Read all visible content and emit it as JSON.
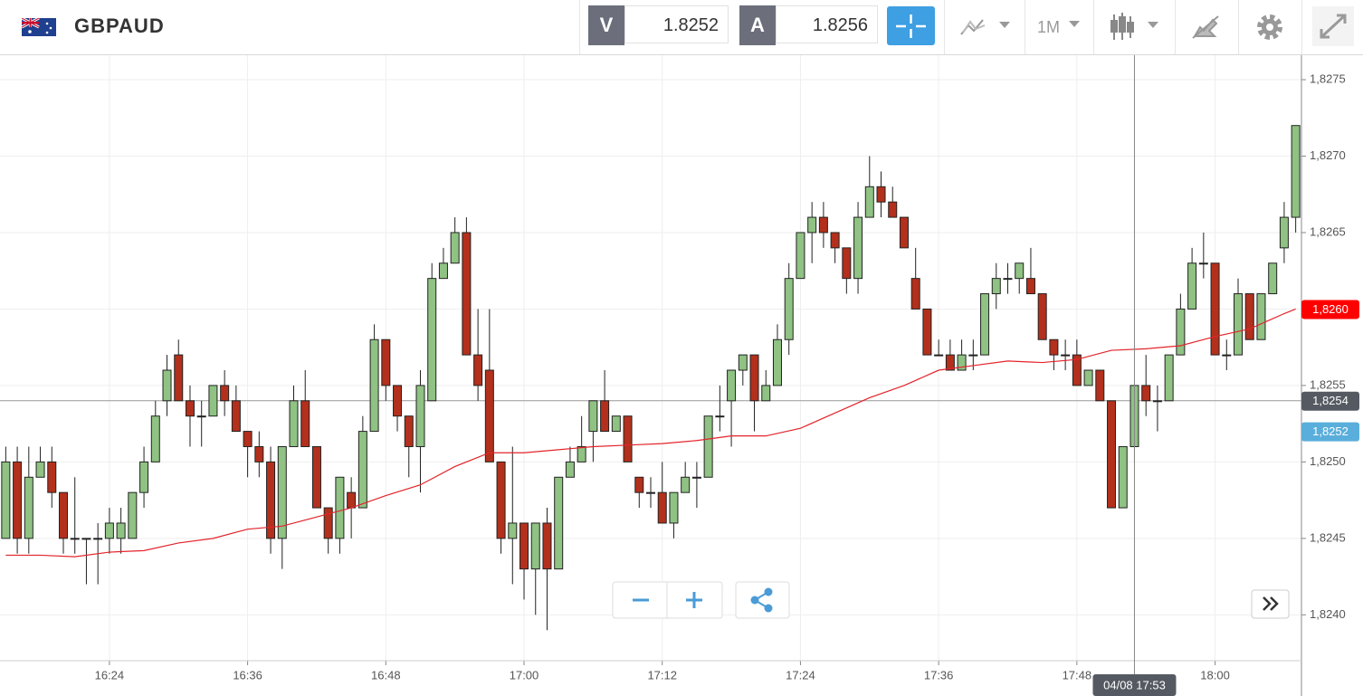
{
  "toolbar": {
    "symbol": "GBPAUD",
    "bid_label": "V",
    "bid": 1.8252,
    "ask_label": "A",
    "ask": 1.8256,
    "timeframe": "1M"
  },
  "chart_data": {
    "type": "candlestick",
    "x": [
      "16:15",
      "16:16",
      "16:17",
      "16:18",
      "16:19",
      "16:20",
      "16:21",
      "16:22",
      "16:23",
      "16:24",
      "16:25",
      "16:26",
      "16:27",
      "16:28",
      "16:29",
      "16:30",
      "16:31",
      "16:32",
      "16:33",
      "16:34",
      "16:35",
      "16:36",
      "16:37",
      "16:38",
      "16:39",
      "16:40",
      "16:41",
      "16:42",
      "16:43",
      "16:44",
      "16:45",
      "16:46",
      "16:47",
      "16:48",
      "16:49",
      "16:50",
      "16:51",
      "16:52",
      "16:53",
      "16:54",
      "16:55",
      "16:56",
      "16:57",
      "16:58",
      "16:59",
      "17:00",
      "17:01",
      "17:02",
      "17:03",
      "17:04",
      "17:05",
      "17:06",
      "17:07",
      "17:08",
      "17:09",
      "17:10",
      "17:11",
      "17:12",
      "17:13",
      "17:14",
      "17:15",
      "17:16",
      "17:17",
      "17:18",
      "17:19",
      "17:20",
      "17:21",
      "17:22",
      "17:23",
      "17:24",
      "17:25",
      "17:26",
      "17:27",
      "17:28",
      "17:29",
      "17:30",
      "17:31",
      "17:32",
      "17:33",
      "17:34",
      "17:35",
      "17:36",
      "17:37",
      "17:38",
      "17:39",
      "17:40",
      "17:41",
      "17:42",
      "17:43",
      "17:44",
      "17:45",
      "17:46",
      "17:47",
      "17:48",
      "17:49",
      "17:50",
      "17:51",
      "17:52",
      "17:53",
      "17:54",
      "17:55",
      "17:56",
      "17:57",
      "17:58",
      "17:59",
      "18:00",
      "18:01",
      "18:02",
      "18:03",
      "18:04",
      "18:05",
      "18:06",
      "18:07"
    ],
    "open": [
      1.8245,
      1.825,
      1.8245,
      1.8249,
      1.825,
      1.8248,
      1.8245,
      1.8245,
      1.8245,
      1.8245,
      1.8245,
      1.8245,
      1.8248,
      1.825,
      1.8254,
      1.8257,
      1.8254,
      1.8253,
      1.8253,
      1.8255,
      1.8254,
      1.8252,
      1.8251,
      1.825,
      1.8245,
      1.8251,
      1.8254,
      1.8251,
      1.8247,
      1.8245,
      1.8248,
      1.8247,
      1.8252,
      1.8258,
      1.8255,
      1.8253,
      1.8251,
      1.8254,
      1.8262,
      1.8263,
      1.8265,
      1.8257,
      1.8256,
      1.825,
      1.8245,
      1.8246,
      1.8243,
      1.8246,
      1.8243,
      1.8249,
      1.825,
      1.8252,
      1.8254,
      1.8252,
      1.8253,
      1.8249,
      1.8248,
      1.8248,
      1.8246,
      1.8248,
      1.8249,
      1.8249,
      1.8253,
      1.8254,
      1.8256,
      1.8257,
      1.8254,
      1.8255,
      1.8258,
      1.8262,
      1.8265,
      1.8266,
      1.8265,
      1.8264,
      1.8262,
      1.8266,
      1.8268,
      1.8267,
      1.8266,
      1.8262,
      1.826,
      1.8257,
      1.8257,
      1.8256,
      1.8257,
      1.8257,
      1.8261,
      1.8262,
      1.8262,
      1.8262,
      1.8261,
      1.8258,
      1.8257,
      1.8257,
      1.8255,
      1.8256,
      1.8254,
      1.8247,
      1.8251,
      1.8255,
      1.8254,
      1.8254,
      1.8257,
      1.826,
      1.8263,
      1.8263,
      1.8257,
      1.8257,
      1.8261,
      1.8258,
      1.8261,
      1.8264,
      1.8266
    ],
    "high": [
      1.8251,
      1.8251,
      1.8251,
      1.8251,
      1.8251,
      1.8248,
      1.8249,
      1.8245,
      1.8246,
      1.8247,
      1.8247,
      1.8248,
      1.8251,
      1.8254,
      1.8257,
      1.8258,
      1.8255,
      1.8254,
      1.8255,
      1.8256,
      1.8255,
      1.8252,
      1.8252,
      1.8251,
      1.8251,
      1.8255,
      1.8256,
      1.8251,
      1.8247,
      1.8249,
      1.8249,
      1.8253,
      1.8259,
      1.8258,
      1.8255,
      1.8253,
      1.8256,
      1.8263,
      1.8264,
      1.8266,
      1.8266,
      1.826,
      1.826,
      1.825,
      1.8251,
      1.8246,
      1.8246,
      1.8247,
      1.8249,
      1.8251,
      1.8253,
      1.8254,
      1.8256,
      1.8253,
      1.8253,
      1.8249,
      1.8249,
      1.825,
      1.8248,
      1.825,
      1.825,
      1.8253,
      1.8255,
      1.8256,
      1.8257,
      1.8257,
      1.8256,
      1.8259,
      1.8263,
      1.8265,
      1.8267,
      1.8267,
      1.8265,
      1.8264,
      1.8267,
      1.827,
      1.8269,
      1.8268,
      1.8266,
      1.8264,
      1.826,
      1.8258,
      1.8258,
      1.8258,
      1.8258,
      1.8261,
      1.8263,
      1.8263,
      1.8263,
      1.8264,
      1.8261,
      1.8258,
      1.8258,
      1.8258,
      1.8256,
      1.8256,
      1.8254,
      1.8251,
      1.8255,
      1.8257,
      1.8255,
      1.8257,
      1.8261,
      1.8264,
      1.8265,
      1.8263,
      1.8258,
      1.8262,
      1.8261,
      1.8261,
      1.8263,
      1.8267,
      1.8272
    ],
    "low": [
      1.8245,
      1.8244,
      1.8244,
      1.8249,
      1.8247,
      1.8244,
      1.8244,
      1.8242,
      1.8242,
      1.8244,
      1.8244,
      1.8245,
      1.8247,
      1.825,
      1.8253,
      1.8254,
      1.8251,
      1.8251,
      1.8253,
      1.8253,
      1.8252,
      1.8249,
      1.8249,
      1.8244,
      1.8243,
      1.8251,
      1.8251,
      1.8247,
      1.8244,
      1.8244,
      1.8245,
      1.8247,
      1.8252,
      1.8254,
      1.8252,
      1.8249,
      1.8248,
      1.8254,
      1.8262,
      1.8263,
      1.8257,
      1.8254,
      1.825,
      1.8244,
      1.8242,
      1.8241,
      1.824,
      1.8239,
      1.8243,
      1.8249,
      1.825,
      1.825,
      1.8252,
      1.8252,
      1.825,
      1.8247,
      1.8247,
      1.8246,
      1.8245,
      1.8248,
      1.8247,
      1.8249,
      1.8252,
      1.8251,
      1.8255,
      1.8252,
      1.8254,
      1.8255,
      1.8257,
      1.8262,
      1.8263,
      1.8264,
      1.8263,
      1.8261,
      1.8261,
      1.8266,
      1.8266,
      1.8266,
      1.8264,
      1.826,
      1.8257,
      1.8257,
      1.8256,
      1.8256,
      1.8256,
      1.8257,
      1.826,
      1.8261,
      1.8261,
      1.8261,
      1.8258,
      1.8256,
      1.8256,
      1.8255,
      1.8255,
      1.8254,
      1.8247,
      1.8247,
      1.825,
      1.8253,
      1.8252,
      1.8254,
      1.8257,
      1.826,
      1.8262,
      1.8257,
      1.8256,
      1.8257,
      1.8258,
      1.8258,
      1.8261,
      1.8263,
      1.8265
    ],
    "close": [
      1.825,
      1.8245,
      1.8249,
      1.825,
      1.8248,
      1.8245,
      1.8245,
      1.8245,
      1.8245,
      1.8246,
      1.8246,
      1.8248,
      1.825,
      1.8253,
      1.8256,
      1.8254,
      1.8253,
      1.8253,
      1.8255,
      1.8254,
      1.8252,
      1.8251,
      1.825,
      1.8245,
      1.8251,
      1.8254,
      1.8251,
      1.8247,
      1.8245,
      1.8249,
      1.8247,
      1.8252,
      1.8258,
      1.8255,
      1.8253,
      1.8251,
      1.8255,
      1.8262,
      1.8263,
      1.8265,
      1.8257,
      1.8255,
      1.825,
      1.8245,
      1.8246,
      1.8243,
      1.8246,
      1.8243,
      1.8249,
      1.825,
      1.8251,
      1.8254,
      1.8252,
      1.8253,
      1.825,
      1.8248,
      1.8248,
      1.8246,
      1.8248,
      1.8249,
      1.8249,
      1.8253,
      1.8253,
      1.8256,
      1.8257,
      1.8254,
      1.8255,
      1.8258,
      1.8262,
      1.8265,
      1.8266,
      1.8265,
      1.8264,
      1.8262,
      1.8266,
      1.8268,
      1.8267,
      1.8266,
      1.8264,
      1.826,
      1.8257,
      1.8257,
      1.8256,
      1.8257,
      1.8257,
      1.8261,
      1.8262,
      1.8262,
      1.8263,
      1.8261,
      1.8258,
      1.8257,
      1.8257,
      1.8255,
      1.8256,
      1.8254,
      1.8247,
      1.8251,
      1.8255,
      1.8254,
      1.8254,
      1.8257,
      1.826,
      1.8263,
      1.8263,
      1.8257,
      1.8257,
      1.8261,
      1.8258,
      1.8261,
      1.8263,
      1.8266,
      1.8272
    ],
    "up_color": "#8fc283",
    "down_color": "#b3301c",
    "ma": {
      "color": "#e3242b",
      "x": [
        "16:15",
        "16:18",
        "16:21",
        "16:24",
        "16:27",
        "16:30",
        "16:33",
        "16:36",
        "16:39",
        "16:42",
        "16:45",
        "16:48",
        "16:51",
        "16:54",
        "16:57",
        "17:00",
        "17:03",
        "17:06",
        "17:09",
        "17:12",
        "17:15",
        "17:18",
        "17:21",
        "17:24",
        "17:27",
        "17:30",
        "17:33",
        "17:36",
        "17:39",
        "17:42",
        "17:45",
        "17:48",
        "17:51",
        "17:54",
        "17:57",
        "18:00",
        "18:03",
        "18:06",
        "18:07"
      ],
      "values": [
        1.82439,
        1.82439,
        1.82438,
        1.82441,
        1.82442,
        1.82447,
        1.8245,
        1.82456,
        1.82458,
        1.82464,
        1.8247,
        1.82478,
        1.82485,
        1.82497,
        1.82506,
        1.82506,
        1.82508,
        1.8251,
        1.82511,
        1.82512,
        1.82514,
        1.82517,
        1.82517,
        1.82522,
        1.82532,
        1.82542,
        1.8255,
        1.8256,
        1.82563,
        1.82566,
        1.82565,
        1.82567,
        1.82573,
        1.82574,
        1.82576,
        1.82582,
        1.82587,
        1.82597,
        1.826
      ]
    },
    "xlim": [
      "16:15",
      "18:07"
    ],
    "xticks": [
      "16:24",
      "16:36",
      "16:48",
      "17:00",
      "17:12",
      "17:24",
      "17:36",
      "17:48",
      "18:00"
    ],
    "ylim": [
      1.8237,
      1.82766
    ],
    "yticks": [
      {
        "value": 1.824,
        "label": "1,8240"
      },
      {
        "value": 1.8245,
        "label": "1,8245"
      },
      {
        "value": 1.825,
        "label": "1,8250"
      },
      {
        "value": 1.8255,
        "label": "1,8255"
      },
      {
        "value": 1.826,
        "label": "1,8260"
      },
      {
        "value": 1.8265,
        "label": "1,8265"
      },
      {
        "value": 1.827,
        "label": "1,8270"
      },
      {
        "value": 1.8275,
        "label": "1,8275"
      }
    ],
    "grid": true,
    "price_markers": [
      {
        "value": 1.826,
        "label": "1,8260",
        "color": "#ff0000"
      },
      {
        "value": 1.8252,
        "label": "1,8252",
        "color": "#5aaedb"
      }
    ],
    "crosshair": {
      "x": "17:53",
      "x_label": "04/08 17:53",
      "y": 1.8254,
      "y_label": "1,8254",
      "color": "#555a62"
    }
  }
}
